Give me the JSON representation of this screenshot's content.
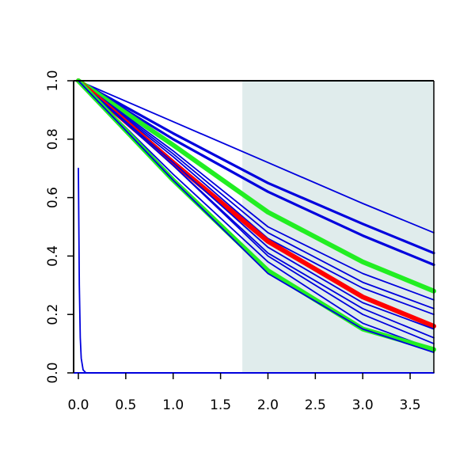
{
  "chart_data": {
    "type": "line",
    "title": "",
    "xlabel": "",
    "ylabel": "",
    "xlim": [
      -0.05,
      3.75
    ],
    "ylim": [
      0,
      1.0
    ],
    "x_ticks": [
      0.0,
      0.5,
      1.0,
      1.5,
      2.0,
      2.5,
      3.0,
      3.5
    ],
    "x_tick_labels": [
      "0.0",
      "0.5",
      "1.0",
      "1.5",
      "2.0",
      "2.5",
      "3.0",
      "3.5"
    ],
    "y_ticks": [
      0.0,
      0.2,
      0.4,
      0.6,
      0.8,
      1.0
    ],
    "y_tick_labels": [
      "0.0",
      "0.2",
      "0.4",
      "0.6",
      "0.8",
      "1.0"
    ],
    "grid": false,
    "legend": "none",
    "shaded_region": {
      "x_from": 1.73,
      "x_to": 3.75,
      "color": "#e0ecec"
    },
    "colors": {
      "blue": "#0000dd",
      "red": "#ff0000",
      "green": "#22ee22",
      "axis": "#000000"
    },
    "series": [
      {
        "color": "blue",
        "width": "thin",
        "x": [
          0,
          1.0,
          2.0,
          3.0,
          3.75
        ],
        "y": [
          1.0,
          0.86,
          0.72,
          0.58,
          0.48
        ]
      },
      {
        "color": "blue",
        "width": "thick",
        "x": [
          0,
          1.0,
          2.0,
          3.0,
          3.75
        ],
        "y": [
          1.0,
          0.82,
          0.65,
          0.51,
          0.41
        ]
      },
      {
        "color": "blue",
        "width": "thick",
        "x": [
          0,
          1.0,
          2.0,
          3.0,
          3.75
        ],
        "y": [
          1.0,
          0.8,
          0.62,
          0.47,
          0.37
        ]
      },
      {
        "color": "green",
        "width": "thick",
        "x": [
          0,
          1.0,
          2.0,
          3.0,
          3.75
        ],
        "y": [
          1.0,
          0.78,
          0.55,
          0.38,
          0.28
        ]
      },
      {
        "color": "blue",
        "width": "thin",
        "x": [
          0,
          1.0,
          2.0,
          3.0,
          3.75
        ],
        "y": [
          1.0,
          0.76,
          0.5,
          0.34,
          0.25
        ]
      },
      {
        "color": "blue",
        "width": "thin",
        "x": [
          0,
          1.0,
          2.0,
          3.0,
          3.75
        ],
        "y": [
          1.0,
          0.75,
          0.48,
          0.31,
          0.22
        ]
      },
      {
        "color": "blue",
        "width": "thin",
        "x": [
          0,
          1.0,
          2.0,
          3.0,
          3.75
        ],
        "y": [
          1.0,
          0.74,
          0.46,
          0.29,
          0.2
        ]
      },
      {
        "color": "red",
        "width": "thick",
        "x": [
          0,
          1.0,
          2.0,
          3.0,
          3.75
        ],
        "y": [
          1.0,
          0.72,
          0.45,
          0.26,
          0.16
        ]
      },
      {
        "color": "blue",
        "width": "thin",
        "x": [
          0,
          1.0,
          2.0,
          3.0,
          3.75
        ],
        "y": [
          1.0,
          0.72,
          0.43,
          0.24,
          0.15
        ]
      },
      {
        "color": "blue",
        "width": "thin",
        "x": [
          0,
          1.0,
          2.0,
          3.0,
          3.75
        ],
        "y": [
          1.0,
          0.71,
          0.41,
          0.22,
          0.12
        ]
      },
      {
        "color": "blue",
        "width": "thin",
        "x": [
          0,
          1.0,
          2.0,
          3.0,
          3.75
        ],
        "y": [
          1.0,
          0.71,
          0.4,
          0.2,
          0.1
        ]
      },
      {
        "color": "blue",
        "width": "thin",
        "x": [
          0,
          1.0,
          2.0,
          3.0,
          3.75
        ],
        "y": [
          1.0,
          0.68,
          0.38,
          0.17,
          0.08
        ]
      },
      {
        "color": "green",
        "width": "thick",
        "x": [
          0,
          1.0,
          2.0,
          3.0,
          3.75
        ],
        "y": [
          1.0,
          0.66,
          0.35,
          0.15,
          0.08
        ]
      },
      {
        "color": "blue",
        "width": "thin",
        "x": [
          0,
          1.0,
          2.0,
          3.0,
          3.75
        ],
        "y": [
          1.0,
          0.66,
          0.34,
          0.15,
          0.07
        ]
      },
      {
        "color": "blue",
        "width": "thin",
        "x": [
          0,
          0.005,
          0.01,
          0.02,
          0.03,
          0.05,
          0.08,
          3.75
        ],
        "y": [
          0.7,
          0.5,
          0.3,
          0.12,
          0.05,
          0.01,
          0,
          0
        ]
      }
    ]
  }
}
